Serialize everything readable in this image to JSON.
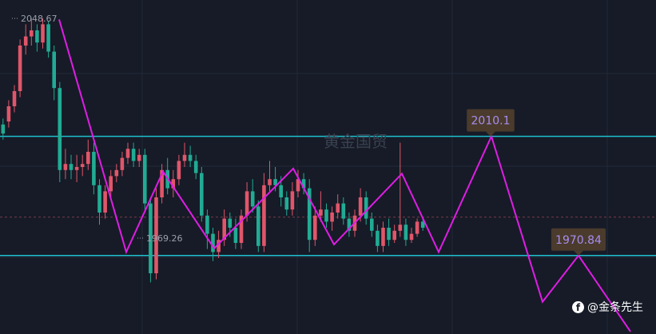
{
  "chart_data": {
    "type": "candlestick",
    "title": "",
    "price_high_label": "2048.67",
    "price_low_label": "1969.26",
    "resistance": {
      "price": 2010.1,
      "label": "2010.1"
    },
    "support": {
      "price": 1970.84,
      "label": "1970.84"
    },
    "y_domain": [
      1945,
      2055
    ],
    "watermark": "黄金国贸",
    "colors": {
      "background": "#161b27",
      "grid": "#232a38",
      "up": "#e0566a",
      "down": "#22ab94",
      "zigzag": "#e01ce6",
      "level_line": "#1fc1cf",
      "badge_bg": "#4a3b2c",
      "badge_text": "#a78df0",
      "current_price_line": "#7a3b48"
    },
    "current_price": 1983.5,
    "candles": [
      [
        2014,
        2011,
        2009,
        2016
      ],
      [
        2015,
        2020,
        2013,
        2022
      ],
      [
        2020,
        2025,
        2018,
        2027
      ],
      [
        2025,
        2040,
        2023,
        2042
      ],
      [
        2040,
        2043,
        2037,
        2047
      ],
      [
        2043,
        2045,
        2040,
        2049
      ],
      [
        2045,
        2041,
        2038,
        2047
      ],
      [
        2041,
        2047,
        2039,
        2049
      ],
      [
        2047,
        2038,
        2036,
        2048
      ],
      [
        2038,
        2026,
        2022,
        2040
      ],
      [
        2026,
        1999,
        1995,
        2028
      ],
      [
        1999,
        2001,
        1996,
        2006
      ],
      [
        2001,
        1999,
        1996,
        2004
      ],
      [
        1999,
        2000,
        1995,
        2004
      ],
      [
        2000,
        2001,
        1997,
        2004
      ],
      [
        2001,
        2005,
        1999,
        2009
      ],
      [
        2005,
        1994,
        1991,
        2008
      ],
      [
        1994,
        1985,
        1981,
        1996
      ],
      [
        1985,
        1992,
        1983,
        1994
      ],
      [
        1992,
        1997,
        1990,
        1999
      ],
      [
        1997,
        1999,
        1995,
        2001
      ],
      [
        1999,
        2003,
        1997,
        2005
      ],
      [
        2003,
        2006,
        2001,
        2008
      ],
      [
        2006,
        2002,
        2000,
        2008
      ],
      [
        2002,
        2004,
        2000,
        2006
      ],
      [
        2004,
        1988,
        1986,
        2006
      ],
      [
        1988,
        1965,
        1962,
        1990
      ],
      [
        1965,
        1990,
        1963,
        1993
      ],
      [
        1990,
        1999,
        1988,
        2001
      ],
      [
        1999,
        1993,
        1991,
        2003
      ],
      [
        1993,
        1996,
        1990,
        1999
      ],
      [
        1996,
        2002,
        1994,
        2004
      ],
      [
        2002,
        2004,
        2000,
        2008
      ],
      [
        2004,
        2002,
        2000,
        2007
      ],
      [
        2002,
        1998,
        1996,
        2004
      ],
      [
        1998,
        1984,
        1982,
        2000
      ],
      [
        1984,
        1978,
        1973,
        1986
      ],
      [
        1978,
        1972,
        1969,
        1980
      ],
      [
        1972,
        1976,
        1970,
        1979
      ],
      [
        1976,
        1983,
        1974,
        1986
      ],
      [
        1983,
        1980,
        1977,
        1985
      ],
      [
        1980,
        1975,
        1973,
        1983
      ],
      [
        1975,
        1984,
        1973,
        1986
      ],
      [
        1984,
        1992,
        1982,
        1995
      ],
      [
        1992,
        1987,
        1985,
        1996
      ],
      [
        1987,
        1974,
        1972,
        1989
      ],
      [
        1974,
        1994,
        1972,
        1998
      ],
      [
        1994,
        1996,
        1992,
        2002
      ],
      [
        1996,
        1994,
        1992,
        2000
      ],
      [
        1994,
        1990,
        1987,
        1997
      ],
      [
        1990,
        1986,
        1984,
        1992
      ],
      [
        1986,
        1992,
        1984,
        1995
      ],
      [
        1992,
        1996,
        1990,
        1999
      ],
      [
        1996,
        1993,
        1991,
        1998
      ],
      [
        1993,
        1976,
        1972,
        1996
      ],
      [
        1976,
        1984,
        1974,
        1987
      ],
      [
        1984,
        1986,
        1982,
        1992
      ],
      [
        1986,
        1982,
        1980,
        1988
      ],
      [
        1982,
        1985,
        1979,
        1987
      ],
      [
        1985,
        1988,
        1983,
        1991
      ],
      [
        1988,
        1983,
        1981,
        1990
      ],
      [
        1983,
        1979,
        1977,
        1985
      ],
      [
        1979,
        1984,
        1977,
        1986
      ],
      [
        1984,
        1990,
        1982,
        1993
      ],
      [
        1990,
        1983,
        1981,
        1992
      ],
      [
        1983,
        1979,
        1977,
        1985
      ],
      [
        1979,
        1974,
        1972,
        1981
      ],
      [
        1974,
        1980,
        1972,
        1982
      ],
      [
        1980,
        1976,
        1974,
        1983
      ],
      [
        1976,
        1979,
        1975,
        1981
      ],
      [
        1979,
        1981,
        1977,
        2008
      ],
      [
        1981,
        1976,
        1974,
        1983
      ],
      [
        1976,
        1978,
        1975,
        1980
      ],
      [
        1978,
        1982,
        1977,
        1983
      ],
      [
        1982,
        1980,
        1979,
        1983
      ]
    ]
  },
  "footer": {
    "icon_name": "facebook-icon",
    "handle": "@金条先生"
  }
}
